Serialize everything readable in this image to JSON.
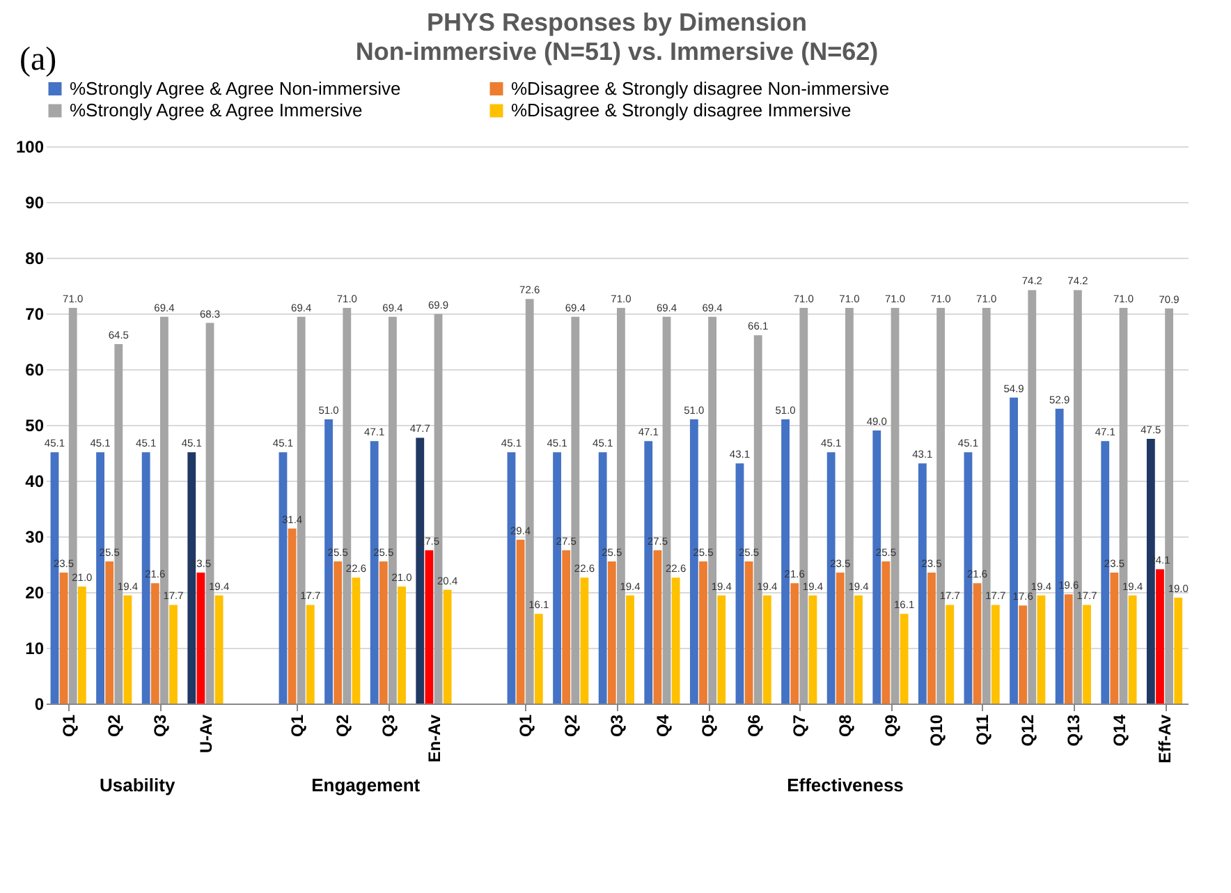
{
  "chart_data": {
    "type": "bar",
    "title": "PHYS Responses by Dimension",
    "subtitle": "Non-immersive (N=51) vs. Immersive (N=62)",
    "annotations": [
      "(a)",
      "Usability",
      "Engagement",
      "Effectiveness"
    ],
    "categories": [
      "Q1",
      "Q2",
      "Q3",
      "U-Av",
      null,
      "Q1",
      "Q2",
      "Q3",
      "En-Av",
      null,
      "Q1",
      "Q2",
      "Q3",
      "Q4",
      "Q5",
      "Q6",
      "Q7",
      "Q8",
      "Q9",
      "Q10",
      "Q11",
      "Q12",
      "Q13",
      "Q14",
      "Eff-Av"
    ],
    "series": [
      {
        "name": "%Strongly Agree & Agree Non-immersive",
        "color": "#4472c4",
        "colors": [
          "#4472c4",
          "#4472c4",
          "#4472c4",
          "#203864",
          null,
          "#4472c4",
          "#4472c4",
          "#4472c4",
          "#203864",
          null,
          "#4472c4",
          "#4472c4",
          "#4472c4",
          "#4472c4",
          "#4472c4",
          "#4472c4",
          "#4472c4",
          "#4472c4",
          "#4472c4",
          "#4472c4",
          "#4472c4",
          "#4472c4",
          "#4472c4",
          "#4472c4",
          "#203864"
        ],
        "value_labels": [
          "45.1",
          "45.1",
          "45.1",
          "45.1",
          null,
          "45.1",
          "51.0",
          "47.1",
          "47.7",
          null,
          "45.1",
          "45.1",
          "45.1",
          "47.1",
          "51.0",
          "43.1",
          "51.0",
          "45.1",
          "49.0",
          "43.1",
          "45.1",
          "54.9",
          "52.9",
          "47.1",
          "47.5"
        ],
        "values": [
          45.1,
          45.1,
          45.1,
          45.1,
          null,
          45.1,
          51.0,
          47.1,
          47.7,
          null,
          45.1,
          45.1,
          45.1,
          47.1,
          51.0,
          43.1,
          51.0,
          45.1,
          49.0,
          43.1,
          45.1,
          54.9,
          52.9,
          47.1,
          47.5
        ]
      },
      {
        "name": "%Disagree & Strongly disagree Non-immersive",
        "color": "#ed7d31",
        "colors": [
          "#ed7d31",
          "#ed7d31",
          "#ed7d31",
          "#ff0000",
          null,
          "#ed7d31",
          "#ed7d31",
          "#ed7d31",
          "#ff0000",
          null,
          "#ed7d31",
          "#ed7d31",
          "#ed7d31",
          "#ed7d31",
          "#ed7d31",
          "#ed7d31",
          "#ed7d31",
          "#ed7d31",
          "#ed7d31",
          "#ed7d31",
          "#ed7d31",
          "#ed7d31",
          "#ed7d31",
          "#ed7d31",
          "#ff0000"
        ],
        "value_labels": [
          "23.5",
          "25.5",
          "21.6",
          "23.5",
          null,
          "31.4",
          "25.5",
          "25.5",
          "27.5",
          null,
          "29.4",
          "27.5",
          "25.5",
          "27.5",
          "25.5",
          "25.5",
          "21.6",
          "23.5",
          "25.5",
          "23.5",
          "21.6",
          "17.6",
          "19.6",
          "23.5",
          "24.1"
        ],
        "values": [
          23.5,
          25.5,
          21.6,
          23.5,
          null,
          31.4,
          25.5,
          25.5,
          27.5,
          null,
          29.4,
          27.5,
          25.5,
          27.5,
          25.5,
          25.5,
          21.6,
          23.5,
          25.5,
          23.5,
          21.6,
          17.6,
          19.6,
          23.5,
          24.1
        ]
      },
      {
        "name": "%Strongly Agree & Agree Immersive",
        "color": "#a5a5a5",
        "value_labels": [
          "71.0",
          "64.5",
          "69.4",
          "68.3",
          null,
          "69.4",
          "71.0",
          "69.4",
          "69.9",
          null,
          "72.6",
          "69.4",
          "71.0",
          "69.4",
          "69.4",
          "66.1",
          "71.0",
          "71.0",
          "71.0",
          "71.0",
          "71.0",
          "74.2",
          "74.2",
          "71.0",
          "70.9"
        ],
        "values": [
          71.0,
          64.5,
          69.4,
          68.3,
          null,
          69.4,
          71.0,
          69.4,
          69.9,
          null,
          72.6,
          69.4,
          71.0,
          69.4,
          69.4,
          66.1,
          71.0,
          71.0,
          71.0,
          71.0,
          71.0,
          74.2,
          74.2,
          71.0,
          70.9
        ]
      },
      {
        "name": "%Disagree & Strongly disagree Immersive",
        "color": "#ffc000",
        "value_labels": [
          "21.0",
          "19.4",
          "17.7",
          "19.4",
          null,
          "17.7",
          "22.6",
          "21.0",
          "20.4",
          null,
          "16.1",
          "22.6",
          "19.4",
          "22.6",
          "19.4",
          "19.4",
          "19.4",
          "19.4",
          "16.1",
          "17.7",
          "17.7",
          "19.4",
          "17.7",
          "19.4",
          "19.0"
        ],
        "values": [
          21.0,
          19.4,
          17.7,
          19.4,
          null,
          17.7,
          22.6,
          21.0,
          20.4,
          null,
          16.1,
          22.6,
          19.4,
          22.6,
          19.4,
          19.4,
          19.4,
          19.4,
          16.1,
          17.7,
          17.7,
          19.4,
          17.7,
          19.4,
          19.0
        ]
      }
    ],
    "ylim": [
      0,
      100
    ],
    "yticks": [
      0,
      10,
      20,
      30,
      40,
      50,
      60,
      70,
      80,
      90,
      100
    ],
    "grid": "y",
    "legend": "top"
  }
}
